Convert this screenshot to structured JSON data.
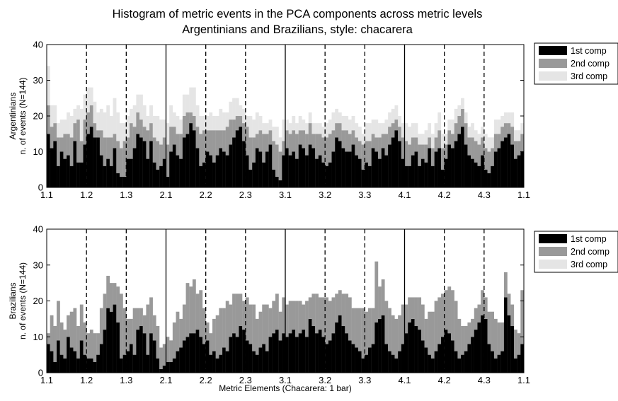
{
  "chart_data": [
    {
      "type": "bar",
      "stacked": true,
      "title_line1": "Histogram of  metric events in the PCA components across metric levels",
      "title_line2": "Argentinians and Brazilians, style: chacarera",
      "ylabel_line1": "Argentinians",
      "ylabel_line2": "n. of events (N=144)",
      "xlabel": "",
      "ylim": [
        0,
        40
      ],
      "yticks": [
        "0",
        "10",
        "20",
        "30",
        "40"
      ],
      "xtick_labels": [
        "1.1",
        "1.2",
        "1.3",
        "2.1",
        "2.2",
        "2.3",
        "3.1",
        "3.2",
        "3.3",
        "4.1",
        "4.2",
        "4.3",
        "1.1"
      ],
      "bins": 144,
      "grid": false,
      "legend_position": "outside-top-right",
      "series": [
        {
          "name": "1st comp",
          "color": "#000000",
          "values": [
            15,
            11,
            13,
            6,
            10,
            8,
            9,
            6,
            13,
            7,
            7,
            12,
            15,
            17,
            14,
            14,
            9,
            6,
            8,
            6,
            11,
            4,
            3,
            3,
            8,
            8,
            11,
            15,
            14,
            13,
            8,
            13,
            7,
            5,
            6,
            8,
            3,
            10,
            12,
            9,
            8,
            14,
            15,
            18,
            16,
            11,
            6,
            7,
            10,
            9,
            7,
            9,
            11,
            10,
            9,
            12,
            14,
            16,
            17,
            13,
            9,
            5,
            7,
            11,
            10,
            7,
            10,
            12,
            5,
            3,
            2,
            9,
            11,
            9,
            10,
            8,
            12,
            11,
            9,
            12,
            11,
            8,
            9,
            7,
            6,
            7,
            10,
            14,
            13,
            11,
            10,
            10,
            12,
            9,
            8,
            5,
            7,
            6,
            11,
            10,
            8,
            11,
            9,
            12,
            14,
            16,
            13,
            8,
            6,
            6,
            9,
            10,
            6,
            8,
            7,
            11,
            6,
            10,
            11,
            5,
            8,
            12,
            11,
            13,
            15,
            17,
            12,
            9,
            8,
            7,
            6,
            9,
            5,
            4,
            6,
            10,
            11,
            13,
            14,
            15,
            12,
            8,
            9,
            10
          ]
        },
        {
          "name": "2nd comp",
          "color": "#999999",
          "values": [
            8,
            6,
            5,
            8,
            4,
            7,
            6,
            8,
            5,
            12,
            6,
            7,
            6,
            6,
            4,
            2,
            7,
            8,
            6,
            8,
            4,
            9,
            8,
            10,
            6,
            10,
            6,
            6,
            5,
            4,
            8,
            5,
            7,
            8,
            6,
            6,
            9,
            7,
            5,
            6,
            7,
            6,
            6,
            3,
            4,
            6,
            9,
            9,
            6,
            7,
            9,
            7,
            5,
            6,
            8,
            7,
            5,
            4,
            3,
            5,
            8,
            9,
            7,
            4,
            6,
            8,
            5,
            4,
            8,
            9,
            8,
            4,
            5,
            6,
            6,
            7,
            4,
            5,
            6,
            6,
            4,
            7,
            6,
            7,
            8,
            8,
            6,
            4,
            5,
            5,
            6,
            5,
            4,
            5,
            5,
            7,
            6,
            7,
            4,
            4,
            6,
            4,
            6,
            5,
            4,
            3,
            4,
            6,
            7,
            6,
            5,
            4,
            6,
            4,
            5,
            3,
            5,
            4,
            5,
            6,
            4,
            4,
            4,
            5,
            5,
            5,
            6,
            5,
            6,
            6,
            6,
            5,
            6,
            6,
            5,
            5,
            4,
            4,
            4,
            3,
            5,
            5,
            4,
            5
          ]
        },
        {
          "name": "3rd comp",
          "color": "#e5e5e5",
          "values": [
            11,
            6,
            5,
            4,
            5,
            4,
            6,
            6,
            4,
            4,
            9,
            7,
            7,
            5,
            6,
            5,
            6,
            7,
            9,
            6,
            10,
            8,
            7,
            5,
            6,
            4,
            6,
            5,
            7,
            6,
            4,
            5,
            6,
            7,
            7,
            5,
            6,
            6,
            4,
            5,
            4,
            6,
            5,
            7,
            8,
            6,
            5,
            4,
            4,
            5,
            4,
            4,
            6,
            5,
            4,
            5,
            6,
            5,
            3,
            4,
            3,
            6,
            5,
            6,
            4,
            3,
            3,
            3,
            4,
            5,
            4,
            6,
            3,
            3,
            4,
            3,
            4,
            3,
            3,
            3,
            3,
            3,
            3,
            3,
            4,
            4,
            5,
            4,
            3,
            4,
            4,
            4,
            4,
            4,
            4,
            3,
            5,
            5,
            4,
            5,
            4,
            3,
            4,
            4,
            4,
            4,
            3,
            4,
            5,
            5,
            4,
            4,
            3,
            3,
            4,
            4,
            4,
            4,
            5,
            4,
            3,
            3,
            4,
            4,
            3,
            3,
            3,
            3,
            4,
            3,
            3,
            3,
            4,
            4,
            3,
            4,
            4,
            3,
            3,
            3,
            4,
            3,
            3,
            3
          ]
        }
      ]
    },
    {
      "type": "bar",
      "stacked": true,
      "title_line1": "",
      "title_line2": "",
      "ylabel_line1": "Brazilians",
      "ylabel_line2": "n. of events (N=144)",
      "xlabel": "Metric Elements (Chacarera: 1 bar)",
      "ylim": [
        0,
        40
      ],
      "yticks": [
        "0",
        "10",
        "20",
        "30",
        "40"
      ],
      "xtick_labels": [
        "1.1",
        "1.2",
        "1.3",
        "2.1",
        "2.2",
        "2.3",
        "3.1",
        "3.2",
        "3.3",
        "4.1",
        "4.2",
        "4.3",
        "1.1"
      ],
      "bins": 144,
      "grid": false,
      "legend_position": "outside-top-right",
      "series": [
        {
          "name": "1st comp",
          "color": "#000000",
          "values": [
            8,
            6,
            3,
            9,
            5,
            4,
            10,
            7,
            6,
            4,
            9,
            5,
            4,
            4,
            3,
            5,
            8,
            12,
            18,
            17,
            19,
            14,
            4,
            5,
            6,
            8,
            5,
            12,
            13,
            11,
            5,
            11,
            9,
            4,
            1,
            2,
            3,
            3,
            4,
            6,
            7,
            9,
            10,
            11,
            11,
            12,
            10,
            8,
            9,
            5,
            6,
            4,
            5,
            7,
            6,
            10,
            11,
            10,
            13,
            12,
            9,
            8,
            6,
            5,
            7,
            8,
            6,
            10,
            11,
            12,
            9,
            11,
            10,
            11,
            12,
            10,
            11,
            12,
            10,
            15,
            13,
            11,
            12,
            10,
            8,
            9,
            11,
            14,
            16,
            13,
            11,
            9,
            8,
            7,
            6,
            4,
            5,
            7,
            8,
            14,
            15,
            16,
            8,
            6,
            5,
            4,
            6,
            8,
            11,
            14,
            15,
            13,
            12,
            9,
            7,
            5,
            4,
            6,
            8,
            10,
            12,
            11,
            9,
            6,
            4,
            5,
            6,
            8,
            10,
            12,
            14,
            16,
            15,
            8,
            6,
            4,
            5,
            6,
            21,
            16,
            13,
            4,
            5,
            8
          ]
        },
        {
          "name": "2nd comp",
          "color": "#999999",
          "values": [
            3,
            10,
            10,
            11,
            9,
            8,
            6,
            10,
            12,
            9,
            10,
            9,
            7,
            8,
            8,
            6,
            10,
            10,
            9,
            8,
            6,
            10,
            18,
            13,
            9,
            7,
            13,
            6,
            5,
            5,
            14,
            10,
            7,
            9,
            6,
            6,
            7,
            6,
            10,
            11,
            8,
            10,
            15,
            13,
            15,
            10,
            13,
            10,
            5,
            6,
            9,
            12,
            13,
            11,
            14,
            9,
            11,
            12,
            9,
            8,
            12,
            11,
            13,
            10,
            10,
            11,
            13,
            8,
            9,
            10,
            8,
            10,
            9,
            9,
            8,
            10,
            9,
            7,
            10,
            6,
            9,
            11,
            9,
            11,
            13,
            11,
            10,
            8,
            7,
            9,
            11,
            12,
            10,
            11,
            12,
            14,
            12,
            11,
            10,
            17,
            9,
            10,
            12,
            12,
            11,
            11,
            10,
            11,
            8,
            7,
            6,
            8,
            9,
            10,
            8,
            12,
            13,
            14,
            13,
            12,
            11,
            13,
            14,
            14,
            11,
            8,
            7,
            6,
            5,
            6,
            5,
            7,
            6,
            9,
            11,
            11,
            9,
            8,
            7,
            6,
            6,
            8,
            6,
            15
          ]
        },
        {
          "name": "3rd comp",
          "color": "#e5e5e5",
          "values": [
            0,
            0,
            0,
            0,
            0,
            0,
            0,
            0,
            0,
            0,
            0,
            0,
            0,
            0,
            0,
            0,
            0,
            0,
            0,
            0,
            0,
            0,
            0,
            0,
            0,
            0,
            0,
            0,
            0,
            0,
            0,
            0,
            0,
            0,
            0,
            0,
            0,
            0,
            0,
            0,
            0,
            0,
            0,
            0,
            0,
            0,
            0,
            0,
            0,
            0,
            0,
            0,
            0,
            0,
            0,
            0,
            0,
            0,
            0,
            0,
            0,
            0,
            0,
            0,
            0,
            0,
            0,
            0,
            0,
            0,
            0,
            0,
            0,
            0,
            0,
            0,
            0,
            0,
            0,
            0,
            0,
            0,
            0,
            0,
            0,
            0,
            0,
            0,
            0,
            0,
            0,
            0,
            0,
            0,
            0,
            0,
            0,
            0,
            0,
            0,
            0,
            0,
            0,
            0,
            0,
            0,
            0,
            0,
            0,
            0,
            0,
            0,
            0,
            0,
            0,
            0,
            0,
            0,
            0,
            0,
            0,
            0,
            0,
            0,
            0,
            0,
            0,
            0,
            0,
            0,
            0,
            0,
            0,
            0,
            0,
            0,
            0,
            0,
            0,
            0,
            0,
            0,
            0,
            0
          ]
        }
      ]
    }
  ]
}
